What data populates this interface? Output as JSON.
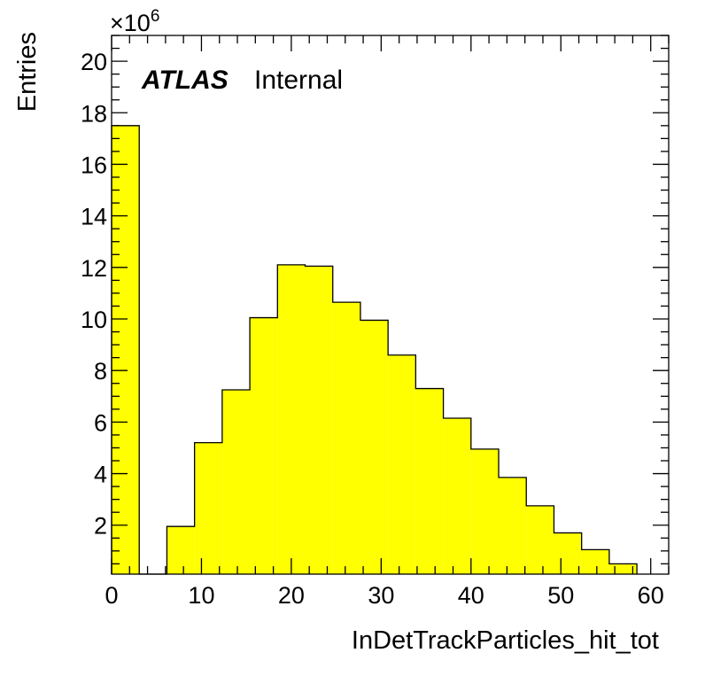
{
  "chart_data": {
    "type": "bar",
    "bin_width": 3.077,
    "x_range": [
      0,
      62
    ],
    "y_range": [
      0.1,
      21
    ],
    "y_multiplier_label": "×10",
    "y_multiplier_exponent": "6",
    "xlabel": "InDetTrackParticles_hit_tot",
    "ylabel": "Entries",
    "x_ticks": [
      0,
      10,
      20,
      30,
      40,
      50,
      60
    ],
    "y_ticks": [
      2,
      4,
      6,
      8,
      10,
      12,
      14,
      16,
      18,
      20
    ],
    "bins": [
      {
        "x": 0.0,
        "value": 17.5
      },
      {
        "x": 3.077,
        "value": 0.0
      },
      {
        "x": 6.154,
        "value": 1.95
      },
      {
        "x": 9.231,
        "value": 5.2
      },
      {
        "x": 12.308,
        "value": 7.25
      },
      {
        "x": 15.385,
        "value": 10.05
      },
      {
        "x": 18.462,
        "value": 12.1
      },
      {
        "x": 21.538,
        "value": 12.05
      },
      {
        "x": 24.615,
        "value": 10.65
      },
      {
        "x": 27.692,
        "value": 9.95
      },
      {
        "x": 30.769,
        "value": 8.6
      },
      {
        "x": 33.846,
        "value": 7.3
      },
      {
        "x": 36.923,
        "value": 6.15
      },
      {
        "x": 40.0,
        "value": 4.95
      },
      {
        "x": 43.077,
        "value": 3.85
      },
      {
        "x": 46.154,
        "value": 2.75
      },
      {
        "x": 49.231,
        "value": 1.7
      },
      {
        "x": 52.308,
        "value": 1.05
      },
      {
        "x": 55.385,
        "value": 0.5
      }
    ],
    "fill_color": "#ffff00",
    "grid": false
  },
  "label": {
    "experiment": "ATLAS",
    "status": "Internal"
  }
}
